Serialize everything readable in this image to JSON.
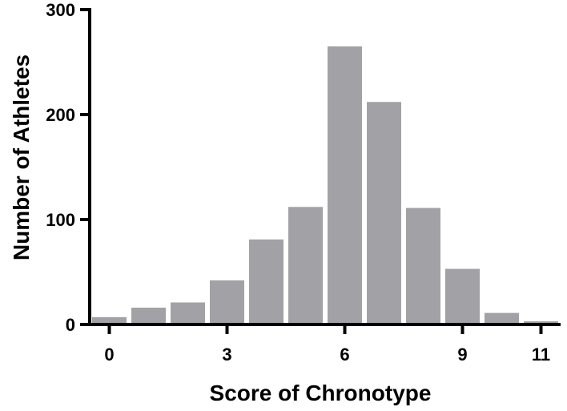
{
  "chart_data": {
    "type": "bar",
    "xlabel": "Score of Chronotype",
    "ylabel": "Number of Athletes",
    "categories": [
      "0",
      "1",
      "2",
      "3",
      "4",
      "5",
      "6",
      "7",
      "8",
      "9",
      "10",
      "11"
    ],
    "values": [
      7,
      16,
      21,
      42,
      81,
      112,
      265,
      212,
      111,
      53,
      11,
      3
    ],
    "ylim": [
      0,
      300
    ],
    "xlim": [
      -0.5,
      11.5
    ],
    "yticks": [
      0,
      100,
      200,
      300
    ],
    "xticks": [
      0,
      3,
      6,
      9,
      11
    ],
    "ytick_labels": [
      "0",
      "100",
      "200",
      "300"
    ],
    "xtick_labels": [
      "0",
      "3",
      "6",
      "9",
      "11"
    ],
    "grid": false,
    "bar_color": "#a2a2a6",
    "axis_color": "#000000"
  }
}
